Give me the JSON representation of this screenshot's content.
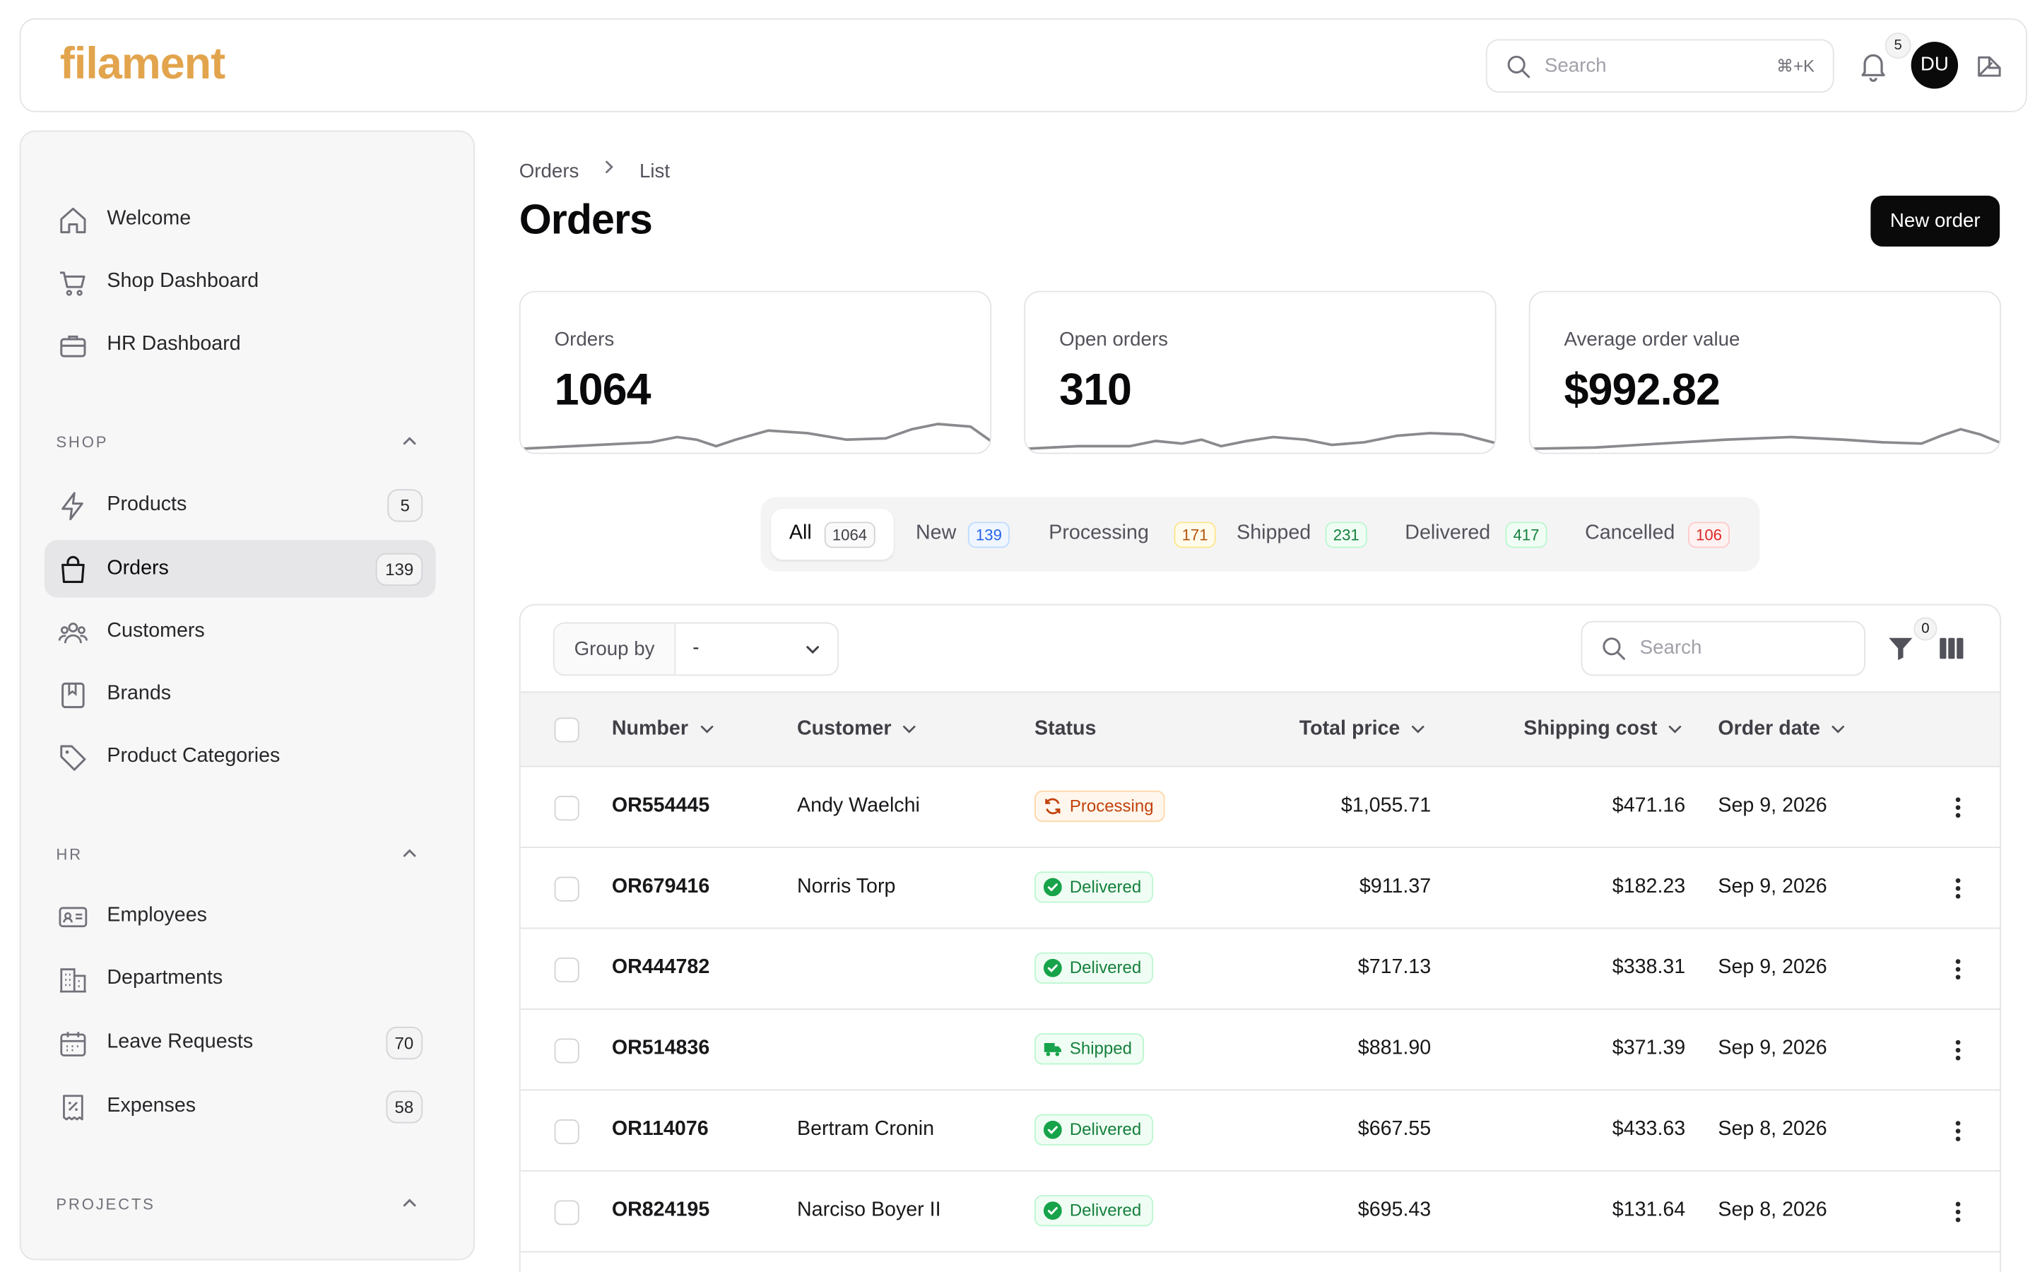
{
  "app": {
    "logo": "filament",
    "search_placeholder": "Search",
    "search_shortcut": "⌘+K",
    "notifications_count": "5",
    "user_initials": "DU"
  },
  "sidebar": {
    "top_items": [
      {
        "label": "Welcome",
        "icon": "home-icon"
      },
      {
        "label": "Shop Dashboard",
        "icon": "cart-icon"
      },
      {
        "label": "HR Dashboard",
        "icon": "briefcase-icon"
      }
    ],
    "groups": [
      {
        "label": "SHOP",
        "items": [
          {
            "label": "Products",
            "badge": "5",
            "icon": "bolt-icon"
          },
          {
            "label": "Orders",
            "badge": "139",
            "icon": "bag-icon",
            "active": true
          },
          {
            "label": "Customers",
            "icon": "users-icon"
          },
          {
            "label": "Brands",
            "icon": "book-icon"
          },
          {
            "label": "Product Categories",
            "icon": "tag-icon"
          }
        ]
      },
      {
        "label": "HR",
        "items": [
          {
            "label": "Employees",
            "icon": "id-card-icon"
          },
          {
            "label": "Departments",
            "icon": "building-icon"
          },
          {
            "label": "Leave Requests",
            "badge": "70",
            "icon": "calendar-icon"
          },
          {
            "label": "Expenses",
            "badge": "58",
            "icon": "receipt-icon"
          }
        ]
      },
      {
        "label": "PROJECTS",
        "items": []
      }
    ]
  },
  "breadcrumb": {
    "parent": "Orders",
    "current": "List"
  },
  "page": {
    "title": "Orders",
    "new_button": "New order"
  },
  "stats": [
    {
      "label": "Orders",
      "value": "1064"
    },
    {
      "label": "Open orders",
      "value": "310"
    },
    {
      "label": "Average order value",
      "value": "$992.82"
    }
  ],
  "tabs": [
    {
      "label": "All",
      "count": "1064",
      "active": true,
      "color": "#3f3f46"
    },
    {
      "label": "New",
      "count": "139",
      "color": "#2563eb"
    },
    {
      "label": "Processing",
      "count": "171",
      "color": "#c2870a"
    },
    {
      "label": "Shipped",
      "count": "231",
      "color": "#15803d"
    },
    {
      "label": "Delivered",
      "count": "417",
      "color": "#15803d"
    },
    {
      "label": "Cancelled",
      "count": "106",
      "color": "#dc2626"
    }
  ],
  "table": {
    "group_by_label": "Group by",
    "group_by_value": "-",
    "search_placeholder": "Search",
    "filter_count": "0",
    "columns": [
      "Number",
      "Customer",
      "Status",
      "Total price",
      "Shipping cost",
      "Order date"
    ],
    "rows": [
      {
        "number": "OR554445",
        "customer": "Andy Waelchi",
        "status": "Processing",
        "total": "$1,055.71",
        "shipping": "$471.16",
        "date": "Sep 9, 2026"
      },
      {
        "number": "OR679416",
        "customer": "Norris Torp",
        "status": "Delivered",
        "total": "$911.37",
        "shipping": "$182.23",
        "date": "Sep 9, 2026"
      },
      {
        "number": "OR444782",
        "customer": "",
        "status": "Delivered",
        "total": "$717.13",
        "shipping": "$338.31",
        "date": "Sep 9, 2026"
      },
      {
        "number": "OR514836",
        "customer": "",
        "status": "Shipped",
        "total": "$881.90",
        "shipping": "$371.39",
        "date": "Sep 9, 2026"
      },
      {
        "number": "OR114076",
        "customer": "Bertram Cronin",
        "status": "Delivered",
        "total": "$667.55",
        "shipping": "$433.63",
        "date": "Sep 8, 2026"
      },
      {
        "number": "OR824195",
        "customer": "Narciso Boyer II",
        "status": "Delivered",
        "total": "$695.43",
        "shipping": "$131.64",
        "date": "Sep 8, 2026"
      }
    ]
  },
  "colors": {
    "brand": "#e2a44c",
    "processing": "#c2410c",
    "delivered": "#15803d",
    "shipped": "#15803d"
  }
}
